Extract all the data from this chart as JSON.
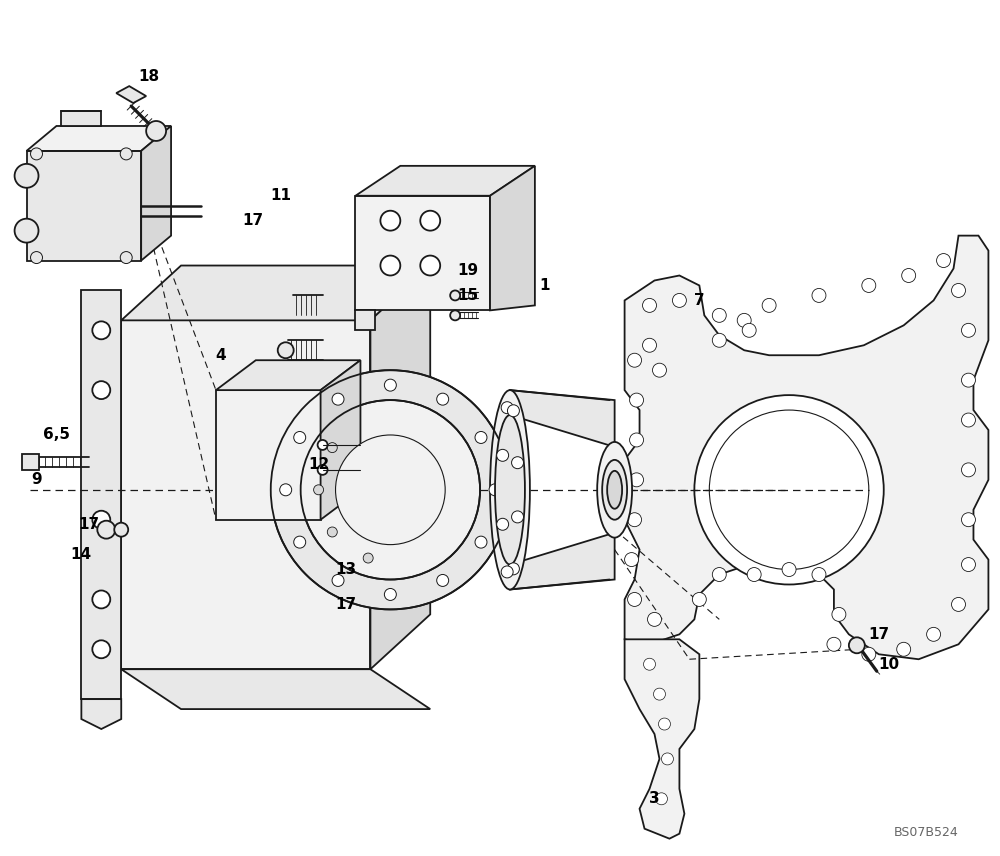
{
  "background_color": "#ffffff",
  "fig_width": 10.0,
  "fig_height": 8.56,
  "dpi": 100,
  "watermark": "BS07B524",
  "lc": "#1a1a1a",
  "lw": 1.3,
  "tlw": 0.8,
  "fill_light": "#f2f2f2",
  "fill_mid": "#e8e8e8",
  "fill_dark": "#d8d8d8",
  "fill_white": "#ffffff",
  "label_fs": 11
}
